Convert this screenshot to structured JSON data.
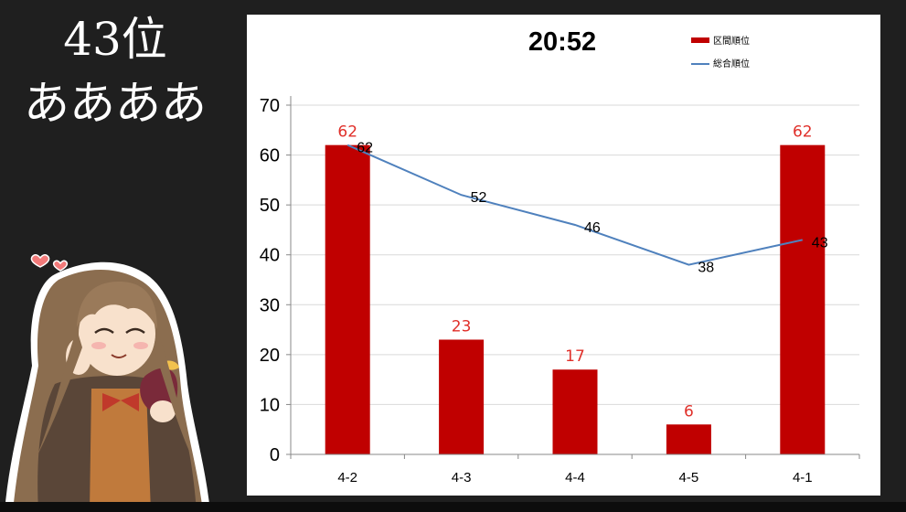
{
  "overlay": {
    "rank": "43位",
    "name": "ああああ"
  },
  "colors": {
    "bar": "#c00000",
    "line": "#4f81bd",
    "bar_label": "#e0302a",
    "background": "#1f1f1f"
  },
  "chart_data": {
    "type": "bar",
    "title": "20:52",
    "categories": [
      "4-2",
      "4-3",
      "4-4",
      "4-5",
      "4-1"
    ],
    "series": [
      {
        "name": "区間順位",
        "type": "bar",
        "values": [
          62,
          23,
          17,
          6,
          62
        ]
      },
      {
        "name": "総合順位",
        "type": "line",
        "values": [
          62,
          52,
          46,
          38,
          43
        ]
      }
    ],
    "yticks": [
      0,
      10,
      20,
      30,
      40,
      50,
      60,
      70
    ],
    "ylim": [
      0,
      70
    ],
    "grid": true,
    "legend_position": "top-right"
  }
}
